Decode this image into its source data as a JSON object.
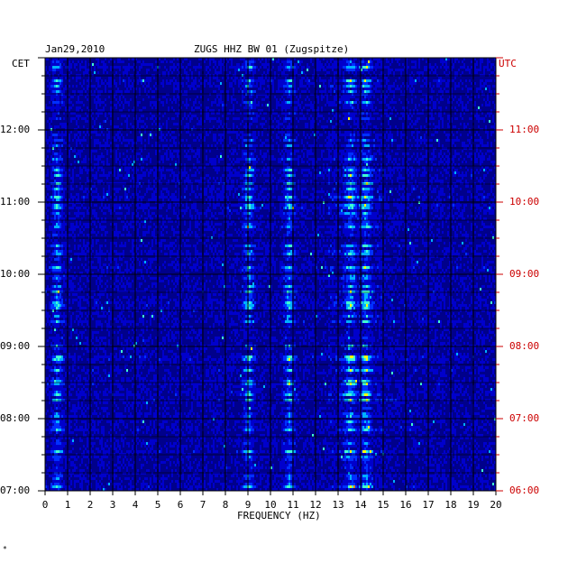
{
  "header": {
    "date": "Jan29,2010",
    "station": "ZUGS HHZ BW 01 (Zugspitze)",
    "left_zone": "CET",
    "right_zone": "UTC"
  },
  "chart_data": {
    "type": "heatmap",
    "title": "ZUGS HHZ BW 01 (Zugspitze)",
    "xlabel": "FREQUENCY (HZ)",
    "ylabel": "",
    "x_ticks": [
      "0",
      "1",
      "2",
      "3",
      "4",
      "5",
      "6",
      "7",
      "8",
      "9",
      "10",
      "11",
      "12",
      "13",
      "14",
      "15",
      "16",
      "17",
      "18",
      "19",
      "20"
    ],
    "xlim": [
      0,
      20
    ],
    "y_range_cet": [
      "07:00",
      "13:00"
    ],
    "y_ticks_cet": [
      "12:00",
      "11:00",
      "10:00",
      "09:00",
      "08:00",
      "07:00"
    ],
    "y_ticks_utc": [
      "11:00",
      "10:00",
      "09:00",
      "08:00",
      "07:00",
      "06:00"
    ],
    "colormap": [
      "#00008b",
      "#0000cc",
      "#0030ff",
      "#00b0ff",
      "#40ffd0",
      "#ffff00",
      "#ff8000",
      "#ff0000"
    ],
    "background_color": "#00008b",
    "dominant_bands_hz": [
      0.5,
      9.0,
      10.8,
      13.5,
      14.2
    ],
    "grid": true
  },
  "corner_mark": "*"
}
